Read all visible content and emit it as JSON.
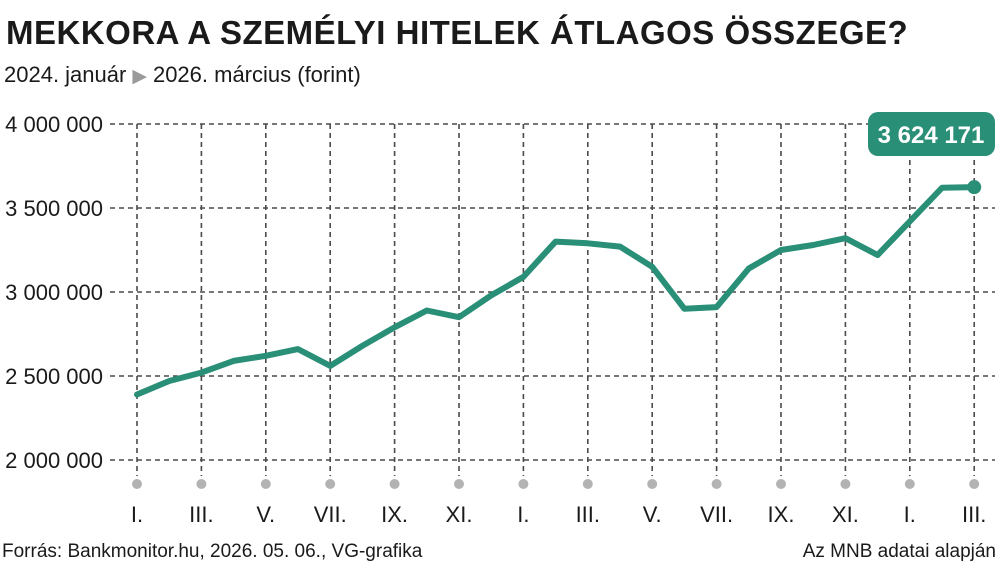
{
  "title": "MEKKORA A SZEMÉLYI HITELEK ÁTLAGOS ÖSSZEGE?",
  "subtitle": {
    "from": "2024. január",
    "arrow_icon": "triangle-right-icon",
    "to": "2026. március (forint)"
  },
  "source": "Forrás: Bankmonitor.hu, 2026. 05. 06., VG-grafika",
  "note": "Az MNB adatai alapján",
  "colors": {
    "line": "#2a8f77",
    "grid": "#4a4a4a",
    "tick_dot": "#b3b3b3",
    "callout_bg": "#2a8f77",
    "callout_text": "#ffffff"
  },
  "chart_data": {
    "type": "line",
    "ylim": [
      2000000,
      4000000
    ],
    "yticks": [
      2000000,
      2500000,
      3000000,
      3500000,
      4000000
    ],
    "ytick_labels": [
      "2 000 000",
      "2 500 000",
      "3 000 000",
      "3 500 000",
      "4 000 000"
    ],
    "x_tick_labels": [
      "I.",
      "III.",
      "V.",
      "VII.",
      "IX.",
      "XI.",
      "I.",
      "III.",
      "V.",
      "VII.",
      "IX.",
      "XI.",
      "I.",
      "III."
    ],
    "grid": true,
    "values": [
      2390000,
      2470000,
      2520000,
      2590000,
      2620000,
      2660000,
      2560000,
      2680000,
      2790000,
      2890000,
      2850000,
      2980000,
      3090000,
      3300000,
      3290000,
      3270000,
      3150000,
      2900000,
      2910000,
      3140000,
      3250000,
      3280000,
      3320000,
      3220000,
      3420000,
      3620000,
      3624171
    ],
    "last_value_label": "3 624 171"
  }
}
